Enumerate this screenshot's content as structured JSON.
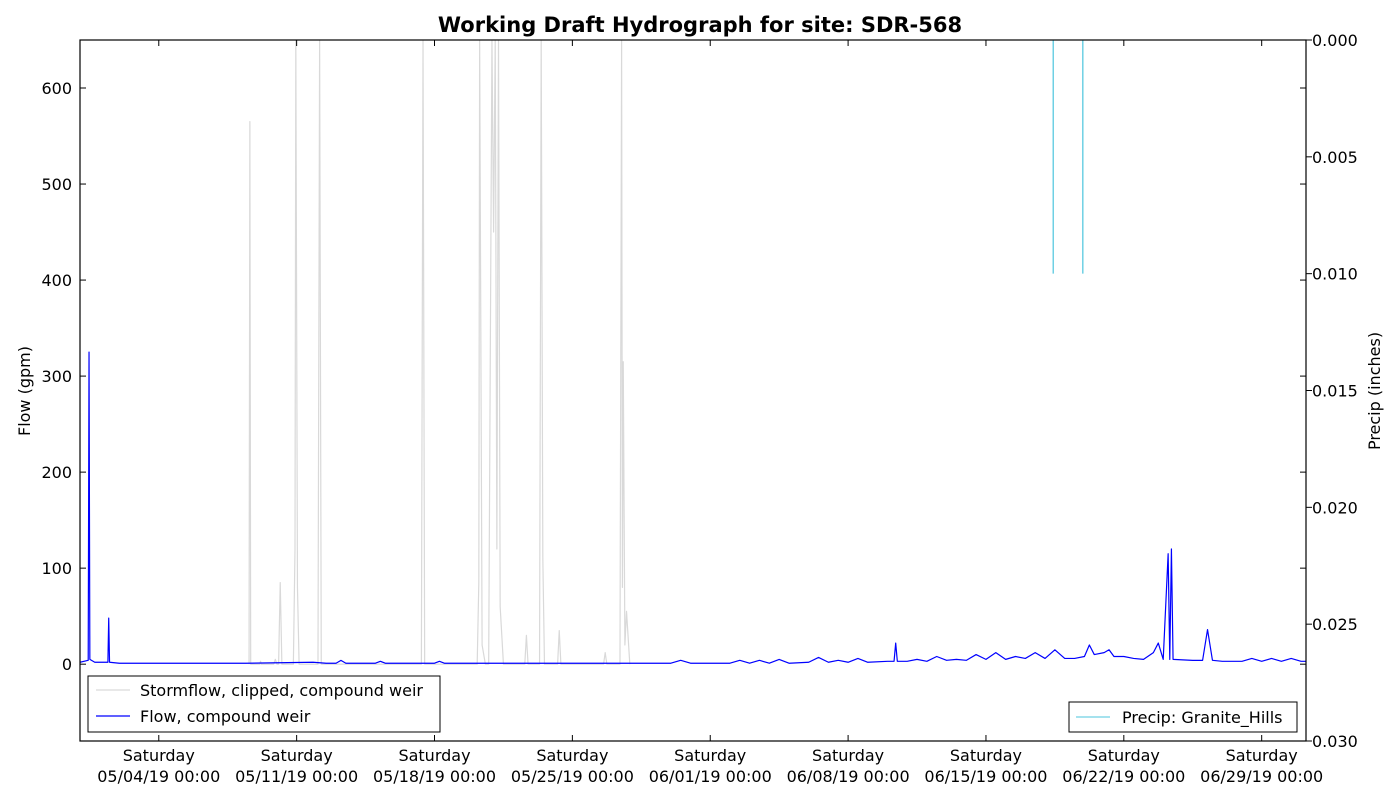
{
  "chart_data": {
    "type": "line",
    "title": "Working Draft Hydrograph for site: SDR-568",
    "ylabel_left": "Flow (gpm)",
    "ylabel_right": "Precip (inches)",
    "x_range": [
      "2019-04-30T00:00",
      "2019-07-01T06:00"
    ],
    "ylim_left": [
      -80,
      650
    ],
    "ylim_right": [
      0.03,
      0.0
    ],
    "x_ticks": [
      {
        "date": "2019-05-04T00:00",
        "line1": "Saturday",
        "line2": "05/04/19 00:00"
      },
      {
        "date": "2019-05-11T00:00",
        "line1": "Saturday",
        "line2": "05/11/19 00:00"
      },
      {
        "date": "2019-05-18T00:00",
        "line1": "Saturday",
        "line2": "05/18/19 00:00"
      },
      {
        "date": "2019-05-25T00:00",
        "line1": "Saturday",
        "line2": "05/25/19 00:00"
      },
      {
        "date": "2019-06-01T00:00",
        "line1": "Saturday",
        "line2": "06/01/19 00:00"
      },
      {
        "date": "2019-06-08T00:00",
        "line1": "Saturday",
        "line2": "06/08/19 00:00"
      },
      {
        "date": "2019-06-15T00:00",
        "line1": "Saturday",
        "line2": "06/15/19 00:00"
      },
      {
        "date": "2019-06-22T00:00",
        "line1": "Saturday",
        "line2": "06/22/19 00:00"
      },
      {
        "date": "2019-06-29T00:00",
        "line1": "Saturday",
        "line2": "06/29/19 00:00"
      }
    ],
    "y_ticks_left": [
      0,
      100,
      200,
      300,
      400,
      500,
      600
    ],
    "y_ticks_right": [
      {
        "value": 0.0,
        "label": "0.000"
      },
      {
        "value": 0.005,
        "label": "0.005"
      },
      {
        "value": 0.01,
        "label": "0.010"
      },
      {
        "value": 0.015,
        "label": "0.015"
      },
      {
        "value": 0.02,
        "label": "0.020"
      },
      {
        "value": 0.025,
        "label": "0.025"
      },
      {
        "value": 0.03,
        "label": "0.030"
      }
    ],
    "legend_left": {
      "placement": "lower-left",
      "entries": [
        {
          "label": "Stormflow, clipped, compound weir",
          "color": "#d9d9d9"
        },
        {
          "label": "Flow, compound weir",
          "color": "#0000ff"
        }
      ]
    },
    "legend_right": {
      "placement": "lower-right",
      "entries": [
        {
          "label": "Precip: Granite_Hills",
          "color": "#6fd0e4"
        }
      ]
    },
    "series": [
      {
        "name": "Stormflow, clipped, compound weir",
        "color": "#d9d9d9",
        "axis": "left",
        "points": [
          [
            "2019-05-08T14:00",
            0
          ],
          [
            "2019-05-08T15:00",
            565
          ],
          [
            "2019-05-08T16:00",
            0
          ],
          [
            "2019-05-09T03:00",
            0
          ],
          [
            "2019-05-09T04:00",
            3
          ],
          [
            "2019-05-09T05:00",
            0
          ],
          [
            "2019-05-09T20:00",
            0
          ],
          [
            "2019-05-09T22:00",
            5
          ],
          [
            "2019-05-10T00:00",
            0
          ],
          [
            "2019-05-10T02:00",
            0
          ],
          [
            "2019-05-10T04:00",
            85
          ],
          [
            "2019-05-10T06:00",
            0
          ],
          [
            "2019-05-10T20:00",
            0
          ],
          [
            "2019-05-10T22:00",
            120
          ],
          [
            "2019-05-10T23:00",
            650
          ],
          [
            "2019-05-11T01:00",
            80
          ],
          [
            "2019-05-11T03:00",
            0
          ],
          [
            "2019-05-12T02:00",
            0
          ],
          [
            "2019-05-12T04:00",
            650
          ],
          [
            "2019-05-12T06:00",
            0
          ],
          [
            "2019-05-17T08:00",
            0
          ],
          [
            "2019-05-17T10:00",
            650
          ],
          [
            "2019-05-17T12:00",
            0
          ],
          [
            "2019-05-20T04:00",
            0
          ],
          [
            "2019-05-20T06:00",
            85
          ],
          [
            "2019-05-20T07:00",
            650
          ],
          [
            "2019-05-20T10:00",
            20
          ],
          [
            "2019-05-20T14:00",
            0
          ],
          [
            "2019-05-20T18:00",
            0
          ],
          [
            "2019-05-20T22:00",
            650
          ],
          [
            "2019-05-21T00:00",
            450
          ],
          [
            "2019-05-21T02:00",
            650
          ],
          [
            "2019-05-21T04:00",
            120
          ],
          [
            "2019-05-21T06:00",
            650
          ],
          [
            "2019-05-21T08:00",
            60
          ],
          [
            "2019-05-21T12:00",
            0
          ],
          [
            "2019-05-22T14:00",
            0
          ],
          [
            "2019-05-22T16:00",
            30
          ],
          [
            "2019-05-22T18:00",
            0
          ],
          [
            "2019-05-23T08:00",
            0
          ],
          [
            "2019-05-23T10:00",
            650
          ],
          [
            "2019-05-23T12:00",
            110
          ],
          [
            "2019-05-23T14:00",
            0
          ],
          [
            "2019-05-24T06:00",
            0
          ],
          [
            "2019-05-24T08:00",
            35
          ],
          [
            "2019-05-24T10:00",
            0
          ],
          [
            "2019-05-26T14:00",
            0
          ],
          [
            "2019-05-26T16:00",
            12
          ],
          [
            "2019-05-26T18:00",
            0
          ],
          [
            "2019-05-27T10:00",
            0
          ],
          [
            "2019-05-27T12:00",
            650
          ],
          [
            "2019-05-27T13:00",
            80
          ],
          [
            "2019-05-27T14:00",
            315
          ],
          [
            "2019-05-27T16:00",
            20
          ],
          [
            "2019-05-27T18:00",
            55
          ],
          [
            "2019-05-27T22:00",
            0
          ]
        ]
      },
      {
        "name": "Flow, compound weir",
        "color": "#0000ff",
        "axis": "left",
        "points": [
          [
            "2019-04-30T00:00",
            2
          ],
          [
            "2019-04-30T10:00",
            4
          ],
          [
            "2019-04-30T11:00",
            325
          ],
          [
            "2019-04-30T12:00",
            5
          ],
          [
            "2019-04-30T18:00",
            2
          ],
          [
            "2019-05-01T10:00",
            2
          ],
          [
            "2019-05-01T11:00",
            48
          ],
          [
            "2019-05-01T12:00",
            2
          ],
          [
            "2019-05-02T00:00",
            1
          ],
          [
            "2019-05-04T00:00",
            1
          ],
          [
            "2019-05-06T00:00",
            1
          ],
          [
            "2019-05-08T10:00",
            1
          ],
          [
            "2019-05-11T20:00",
            2
          ],
          [
            "2019-05-12T12:00",
            1
          ],
          [
            "2019-05-13T00:00",
            1
          ],
          [
            "2019-05-13T06:00",
            4
          ],
          [
            "2019-05-13T12:00",
            1
          ],
          [
            "2019-05-14T00:00",
            1
          ],
          [
            "2019-05-15T00:00",
            1
          ],
          [
            "2019-05-15T06:00",
            3
          ],
          [
            "2019-05-15T12:00",
            1
          ],
          [
            "2019-05-16T00:00",
            1
          ],
          [
            "2019-05-17T00:00",
            1
          ],
          [
            "2019-05-18T00:00",
            1
          ],
          [
            "2019-05-18T06:00",
            3
          ],
          [
            "2019-05-18T12:00",
            1
          ],
          [
            "2019-05-19T00:00",
            1
          ],
          [
            "2019-05-20T00:00",
            1
          ],
          [
            "2019-05-24T00:00",
            1
          ],
          [
            "2019-05-24T12:00",
            1
          ],
          [
            "2019-05-25T00:00",
            1
          ],
          [
            "2019-05-26T00:00",
            1
          ],
          [
            "2019-05-28T12:00",
            1
          ],
          [
            "2019-05-29T00:00",
            1
          ],
          [
            "2019-05-30T00:00",
            1
          ],
          [
            "2019-05-30T12:00",
            4
          ],
          [
            "2019-05-31T00:00",
            1
          ],
          [
            "2019-06-01T00:00",
            1
          ],
          [
            "2019-06-02T00:00",
            1
          ],
          [
            "2019-06-02T12:00",
            4
          ],
          [
            "2019-06-03T00:00",
            1
          ],
          [
            "2019-06-03T12:00",
            4
          ],
          [
            "2019-06-04T00:00",
            1
          ],
          [
            "2019-06-04T12:00",
            5
          ],
          [
            "2019-06-05T00:00",
            1
          ],
          [
            "2019-06-06T00:00",
            2
          ],
          [
            "2019-06-06T12:00",
            7
          ],
          [
            "2019-06-07T00:00",
            2
          ],
          [
            "2019-06-07T12:00",
            4
          ],
          [
            "2019-06-08T00:00",
            2
          ],
          [
            "2019-06-08T12:00",
            6
          ],
          [
            "2019-06-09T00:00",
            2
          ],
          [
            "2019-06-10T00:00",
            3
          ],
          [
            "2019-06-10T08:00",
            3
          ],
          [
            "2019-06-10T10:00",
            22
          ],
          [
            "2019-06-10T12:00",
            3
          ],
          [
            "2019-06-11T00:00",
            3
          ],
          [
            "2019-06-11T12:00",
            5
          ],
          [
            "2019-06-12T00:00",
            3
          ],
          [
            "2019-06-12T12:00",
            8
          ],
          [
            "2019-06-13T00:00",
            4
          ],
          [
            "2019-06-13T12:00",
            5
          ],
          [
            "2019-06-14T00:00",
            4
          ],
          [
            "2019-06-14T12:00",
            10
          ],
          [
            "2019-06-15T00:00",
            5
          ],
          [
            "2019-06-15T12:00",
            12
          ],
          [
            "2019-06-16T00:00",
            5
          ],
          [
            "2019-06-16T12:00",
            8
          ],
          [
            "2019-06-17T00:00",
            6
          ],
          [
            "2019-06-17T12:00",
            12
          ],
          [
            "2019-06-18T00:00",
            6
          ],
          [
            "2019-06-18T12:00",
            15
          ],
          [
            "2019-06-19T00:00",
            6
          ],
          [
            "2019-06-19T12:00",
            6
          ],
          [
            "2019-06-20T00:00",
            8
          ],
          [
            "2019-06-20T06:00",
            20
          ],
          [
            "2019-06-20T12:00",
            10
          ],
          [
            "2019-06-21T00:00",
            12
          ],
          [
            "2019-06-21T06:00",
            15
          ],
          [
            "2019-06-21T12:00",
            8
          ],
          [
            "2019-06-22T00:00",
            8
          ],
          [
            "2019-06-22T12:00",
            6
          ],
          [
            "2019-06-23T00:00",
            5
          ],
          [
            "2019-06-23T12:00",
            12
          ],
          [
            "2019-06-23T18:00",
            22
          ],
          [
            "2019-06-24T00:00",
            5
          ],
          [
            "2019-06-24T06:00",
            115
          ],
          [
            "2019-06-24T08:00",
            5
          ],
          [
            "2019-06-24T10:00",
            120
          ],
          [
            "2019-06-24T12:00",
            5
          ],
          [
            "2019-06-25T12:00",
            4
          ],
          [
            "2019-06-26T00:00",
            4
          ],
          [
            "2019-06-26T06:00",
            36
          ],
          [
            "2019-06-26T12:00",
            4
          ],
          [
            "2019-06-27T00:00",
            3
          ],
          [
            "2019-06-28T00:00",
            3
          ],
          [
            "2019-06-28T12:00",
            6
          ],
          [
            "2019-06-29T00:00",
            3
          ],
          [
            "2019-06-29T12:00",
            6
          ],
          [
            "2019-06-30T00:00",
            3
          ],
          [
            "2019-06-30T12:00",
            6
          ],
          [
            "2019-07-01T00:00",
            3
          ],
          [
            "2019-07-01T06:00",
            3
          ]
        ]
      },
      {
        "name": "Precip: Granite_Hills",
        "color": "#6fd0e4",
        "axis": "right",
        "points": [
          [
            "2019-06-18T10:00",
            0.01
          ],
          [
            "2019-06-19T22:00",
            0.01
          ]
        ]
      }
    ]
  }
}
